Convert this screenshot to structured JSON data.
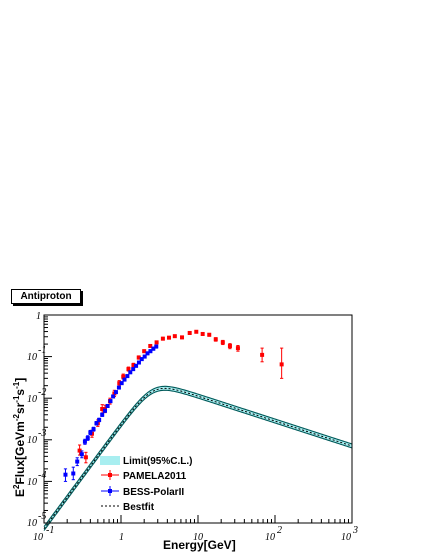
{
  "chart_data": {
    "type": "scatter",
    "title": "Antiproton",
    "xlabel": "Energy[GeV]",
    "ylabel": "E^2Flux[GeVm^-2sr^-1s^-1]",
    "xscale": "log",
    "yscale": "log",
    "xlim": [
      0.1,
      1000
    ],
    "ylim": [
      1e-05,
      1
    ],
    "x_ticks": [
      "10^-1",
      "1",
      "10",
      "10^2",
      "10^3"
    ],
    "y_ticks": [
      "10^-5",
      "10^-4",
      "10^-3",
      "10^-2",
      "10^-1",
      "1"
    ],
    "legend_position": "bottom-left",
    "legend": [
      "Limit(95%C.L.)",
      "PAMELA2011",
      "BESS-PolarII",
      "Bestfit"
    ],
    "colors": {
      "limit": "#a8eef0",
      "pamela": "#ff0000",
      "bess": "#0000ff",
      "bestfit": "#000000",
      "curve": "#005a5a"
    },
    "series": [
      {
        "name": "PAMELA2011",
        "x": [
          0.29,
          0.35,
          0.42,
          0.5,
          0.57,
          0.62,
          0.72,
          0.82,
          0.95,
          1.07,
          1.25,
          1.45,
          1.7,
          2.0,
          2.4,
          2.9,
          3.5,
          4.2,
          5.0,
          6.2,
          7.8,
          9.5,
          11.5,
          14.0,
          17.0,
          21.0,
          26.0,
          33.0,
          68.0,
          122.0
        ],
        "y": [
          0.00055,
          0.00038,
          0.0014,
          0.0025,
          0.0055,
          0.0055,
          0.0085,
          0.013,
          0.023,
          0.033,
          0.05,
          0.062,
          0.095,
          0.135,
          0.18,
          0.22,
          0.27,
          0.285,
          0.31,
          0.29,
          0.37,
          0.395,
          0.35,
          0.335,
          0.26,
          0.22,
          0.18,
          0.16,
          0.11,
          0.065
        ],
        "y_lo": [
          0.00043,
          0.00028,
          0.00115,
          0.0021,
          0.0043,
          0.0045,
          0.0072,
          0.011,
          0.02,
          0.029,
          0.045,
          0.056,
          0.087,
          0.125,
          0.168,
          0.205,
          0.25,
          0.265,
          0.29,
          0.27,
          0.345,
          0.37,
          0.325,
          0.31,
          0.235,
          0.195,
          0.155,
          0.135,
          0.075,
          0.03
        ],
        "y_hi": [
          0.00075,
          0.0005,
          0.0017,
          0.003,
          0.007,
          0.0068,
          0.01,
          0.0155,
          0.0265,
          0.038,
          0.056,
          0.069,
          0.104,
          0.145,
          0.195,
          0.235,
          0.29,
          0.305,
          0.33,
          0.31,
          0.395,
          0.42,
          0.375,
          0.36,
          0.285,
          0.245,
          0.205,
          0.185,
          0.16,
          0.16
        ]
      },
      {
        "name": "BESS-PolarII",
        "x": [
          0.19,
          0.24,
          0.27,
          0.31,
          0.34,
          0.37,
          0.4,
          0.44,
          0.48,
          0.52,
          0.57,
          0.62,
          0.67,
          0.73,
          0.79,
          0.86,
          0.94,
          1.02,
          1.11,
          1.21,
          1.32,
          1.44,
          1.57,
          1.71,
          1.86,
          2.03,
          2.21,
          2.41,
          2.63,
          2.87
        ],
        "y": [
          0.000145,
          0.000155,
          0.0003,
          0.00045,
          0.0009,
          0.0011,
          0.0015,
          0.0018,
          0.0025,
          0.003,
          0.004,
          0.005,
          0.0065,
          0.0085,
          0.011,
          0.014,
          0.018,
          0.023,
          0.028,
          0.034,
          0.042,
          0.05,
          0.06,
          0.072,
          0.087,
          0.1,
          0.12,
          0.135,
          0.155,
          0.175
        ],
        "y_lo": [
          0.0001,
          0.00011,
          0.00024,
          0.00037,
          0.00078,
          0.00097,
          0.00133,
          0.00162,
          0.00227,
          0.00273,
          0.00365,
          0.0046,
          0.006,
          0.0079,
          0.0102,
          0.013,
          0.0167,
          0.0215,
          0.026,
          0.0315,
          0.039,
          0.0465,
          0.056,
          0.067,
          0.081,
          0.093,
          0.111,
          0.125,
          0.143,
          0.16
        ],
        "y_hi": [
          0.0002,
          0.00022,
          0.00037,
          0.00054,
          0.00103,
          0.00125,
          0.00168,
          0.002,
          0.00275,
          0.0033,
          0.0044,
          0.00545,
          0.00705,
          0.00915,
          0.0118,
          0.015,
          0.0193,
          0.0246,
          0.03,
          0.0365,
          0.045,
          0.0537,
          0.0645,
          0.0775,
          0.0935,
          0.108,
          0.129,
          0.146,
          0.168,
          0.19
        ]
      }
    ]
  }
}
